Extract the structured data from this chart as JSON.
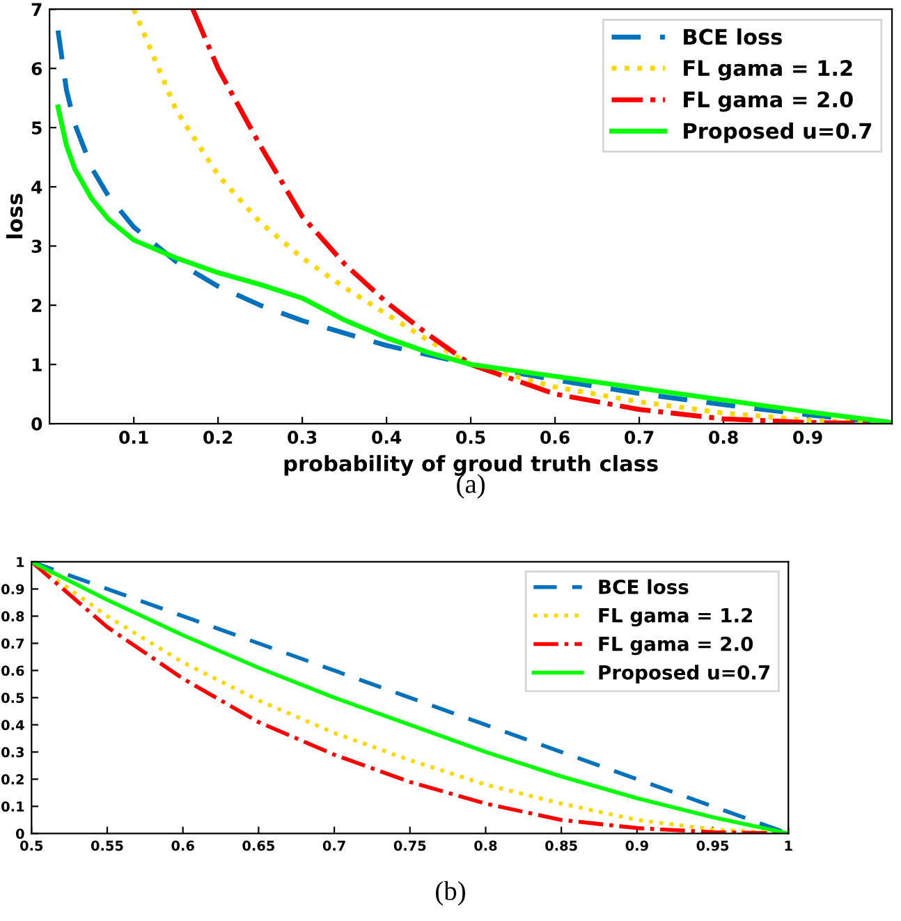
{
  "chart_data": [
    {
      "type": "line",
      "xlabel": "probability of groud truth class",
      "ylabel": "loss",
      "annotations": [
        "(a)"
      ],
      "xlim": [
        0,
        1
      ],
      "ylim": [
        0,
        7
      ],
      "xticks": [
        0.1,
        0.2,
        0.3,
        0.4,
        0.5,
        0.6,
        0.7,
        0.8,
        0.9
      ],
      "yticks": [
        0,
        1,
        2,
        3,
        4,
        5,
        6,
        7
      ],
      "legend": "top right",
      "grid": false,
      "series": [
        {
          "name": "BCE loss",
          "color": "#0072bd",
          "line_style": "dashed",
          "x": [
            0.01,
            0.02,
            0.03,
            0.05,
            0.07,
            0.1,
            0.15,
            0.2,
            0.25,
            0.3,
            0.4,
            0.5,
            0.6,
            0.7,
            0.8,
            0.9,
            1.0
          ],
          "values": [
            6.64,
            5.64,
            5.06,
            4.32,
            3.84,
            3.32,
            2.74,
            2.32,
            2.0,
            1.74,
            1.32,
            1.0,
            0.74,
            0.51,
            0.32,
            0.15,
            0.0
          ]
        },
        {
          "name": "FL gama = 1.2",
          "color": "#ffd700",
          "line_style": "dotted",
          "x": [
            0.1,
            0.15,
            0.2,
            0.25,
            0.3,
            0.35,
            0.4,
            0.45,
            0.5,
            0.6,
            0.7,
            0.8,
            0.9,
            1.0
          ],
          "values": [
            7.0,
            5.3,
            4.2,
            3.4,
            2.8,
            2.3,
            1.85,
            1.4,
            1.0,
            0.62,
            0.37,
            0.18,
            0.06,
            0.0
          ]
        },
        {
          "name": "FL gama = 2.0",
          "color": "#ff0000",
          "line_style": "dashdot",
          "x": [
            0.17,
            0.2,
            0.25,
            0.3,
            0.35,
            0.4,
            0.45,
            0.5,
            0.6,
            0.7,
            0.8,
            0.9,
            1.0
          ],
          "values": [
            7.0,
            6.0,
            4.7,
            3.5,
            2.7,
            2.05,
            1.5,
            1.0,
            0.5,
            0.24,
            0.08,
            0.02,
            0.0
          ]
        },
        {
          "name": "Proposed u=0.7",
          "color": "#00ff00",
          "line_style": "solid",
          "x": [
            0.01,
            0.02,
            0.03,
            0.05,
            0.07,
            0.1,
            0.15,
            0.2,
            0.25,
            0.3,
            0.35,
            0.4,
            0.45,
            0.5,
            0.6,
            0.7,
            0.8,
            0.9,
            1.0
          ],
          "values": [
            5.35,
            4.7,
            4.3,
            3.8,
            3.45,
            3.1,
            2.8,
            2.55,
            2.35,
            2.12,
            1.75,
            1.45,
            1.2,
            1.0,
            0.8,
            0.6,
            0.4,
            0.2,
            0.02
          ]
        }
      ]
    },
    {
      "type": "line",
      "annotations": [
        "(b)"
      ],
      "xlim": [
        0.5,
        1
      ],
      "ylim": [
        0,
        1
      ],
      "xticks": [
        0.5,
        0.55,
        0.6,
        0.65,
        0.7,
        0.75,
        0.8,
        0.85,
        0.9,
        0.95,
        1
      ],
      "yticks": [
        0,
        0.1,
        0.2,
        0.3,
        0.4,
        0.5,
        0.6,
        0.7,
        0.8,
        0.9,
        1
      ],
      "legend": "top right",
      "grid": false,
      "series": [
        {
          "name": "BCE loss",
          "color": "#0072bd",
          "line_style": "dashed",
          "x": [
            0.5,
            0.6,
            0.7,
            0.8,
            0.9,
            1.0
          ],
          "values": [
            1.0,
            0.8,
            0.6,
            0.4,
            0.2,
            0.0
          ]
        },
        {
          "name": "FL gama = 1.2",
          "color": "#ffd700",
          "line_style": "dotted",
          "x": [
            0.5,
            0.55,
            0.6,
            0.65,
            0.7,
            0.75,
            0.8,
            0.85,
            0.9,
            0.95,
            1.0
          ],
          "values": [
            1.0,
            0.8,
            0.63,
            0.49,
            0.37,
            0.27,
            0.18,
            0.11,
            0.05,
            0.015,
            0.0
          ]
        },
        {
          "name": "FL gama = 2.0",
          "color": "#ff0000",
          "line_style": "dashdot",
          "x": [
            0.5,
            0.55,
            0.6,
            0.65,
            0.7,
            0.75,
            0.8,
            0.85,
            0.9,
            0.95,
            1.0
          ],
          "values": [
            1.0,
            0.76,
            0.57,
            0.41,
            0.29,
            0.19,
            0.11,
            0.05,
            0.02,
            0.005,
            0.0
          ]
        },
        {
          "name": "Proposed u=0.7",
          "color": "#00ff00",
          "line_style": "solid",
          "x": [
            0.5,
            0.55,
            0.6,
            0.65,
            0.7,
            0.75,
            0.8,
            0.85,
            0.9,
            0.95,
            1.0
          ],
          "values": [
            1.0,
            0.86,
            0.73,
            0.61,
            0.5,
            0.4,
            0.3,
            0.21,
            0.13,
            0.06,
            0.0
          ]
        }
      ]
    }
  ]
}
